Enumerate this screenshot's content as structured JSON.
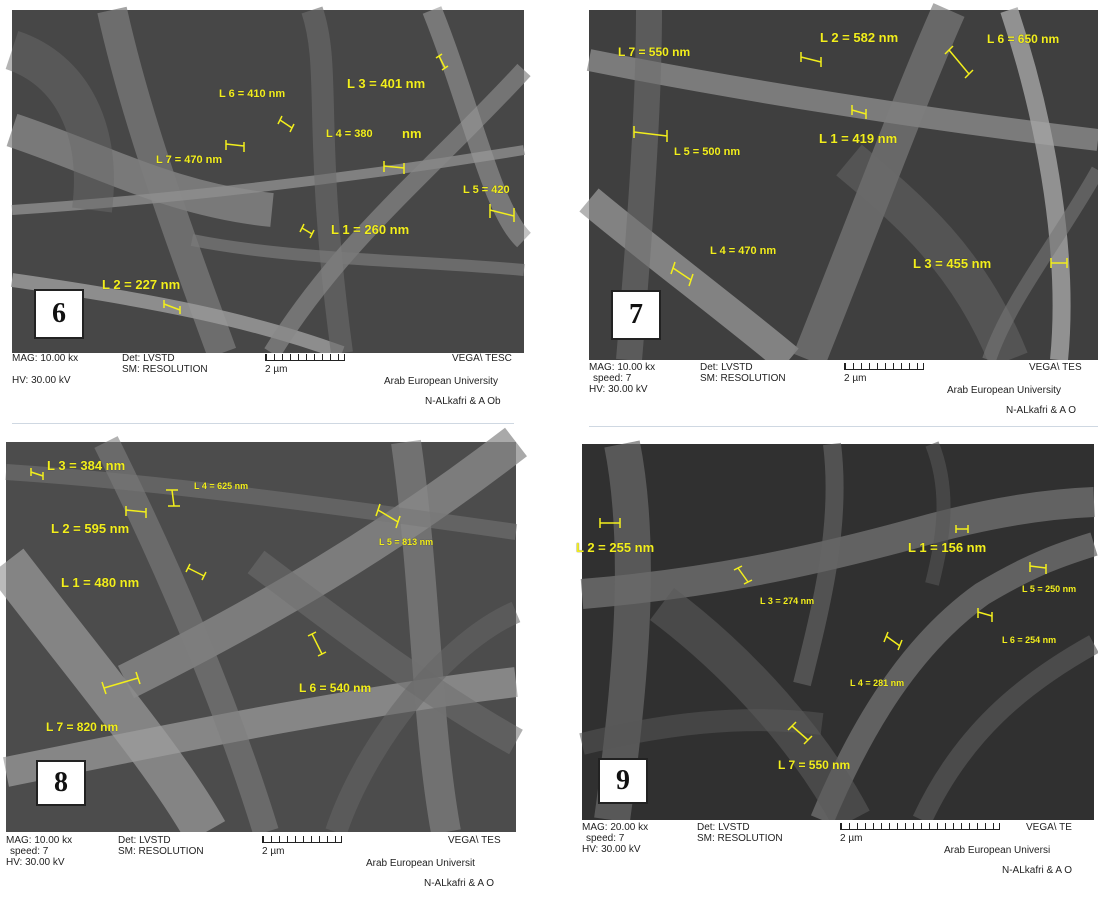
{
  "panels": [
    {
      "number": "6",
      "labels": [
        "L 3 = 401 nm",
        "L 6 = 410 nm",
        "L 4 = 380",
        "nm",
        "L 7 = 470 nm",
        "L 5 = 420",
        "L 1 = 260 nm",
        "L 2 = 227 nm"
      ],
      "info": {
        "mag": "MAG: 10.00 kx",
        "speed": "",
        "hv": "HV: 30.00 kV",
        "det": "Det: LVSTD",
        "sm": "SM: RESOLUTION",
        "scale": "2 µm",
        "vega": "VEGA\\ TESC",
        "univ": "Arab European University",
        "authors": "N-ALkafri & A Ob"
      }
    },
    {
      "number": "7",
      "labels": [
        "L 7 = 550 nm",
        "L 2 = 582 nm",
        "L 6 = 650 nm",
        "L 1 = 419 nm",
        "L 5 = 500 nm",
        "L 4 = 470 nm",
        "L 3 = 455 nm"
      ],
      "info": {
        "mag": "MAG: 10.00 kx",
        "speed": "speed: 7",
        "hv": "HV: 30.00 kV",
        "det": "Det: LVSTD",
        "sm": "SM: RESOLUTION",
        "scale": "2 µm",
        "vega": "VEGA\\ TES",
        "univ": "Arab European University",
        "authors": "N-ALkafri & A O"
      }
    },
    {
      "number": "8",
      "labels": [
        "L 3 = 384 nm",
        "L 4 = 625 nm",
        "L 2 = 595 nm",
        "L 5 = 813 nm",
        "L 1 = 480 nm",
        "L 6 = 540 nm",
        "L 7 = 820 nm"
      ],
      "info": {
        "mag": "MAG: 10.00 kx",
        "speed": "speed: 7",
        "hv": "HV: 30.00 kV",
        "det": "Det: LVSTD",
        "sm": "SM: RESOLUTION",
        "scale": "2 µm",
        "vega": "VEGA\\ TES",
        "univ": "Arab European Universit",
        "authors": "N-ALkafri & A O"
      }
    },
    {
      "number": "9",
      "labels": [
        "L 2 = 255 nm",
        "L 1 = 156 nm",
        "L 3 = 274 nm",
        "L 5 = 250 nm",
        "L 6 = 254 nm",
        "L 4 = 281 nm",
        "L 7 = 550 nm"
      ],
      "info": {
        "mag": "MAG: 20.00 kx",
        "speed": "speed: 7",
        "hv": "HV: 30.00 kV",
        "det": "Det: LVSTD",
        "sm": "SM: RESOLUTION",
        "scale": "2 µm",
        "vega": "VEGA\\ TE",
        "univ": "Arab European Universi",
        "authors": "N-ALkafri & A O"
      }
    }
  ]
}
